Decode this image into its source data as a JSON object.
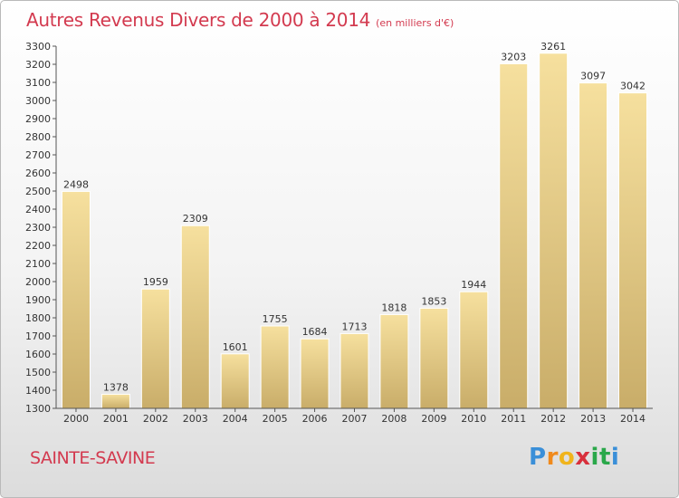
{
  "header": {
    "title": "Autres Revenus Divers de 2000 à 2014",
    "subtitle": "(en milliers d'€)"
  },
  "footer": {
    "place": "SAINTE-SAVINE",
    "logo": "Proxiti",
    "logo_letters": [
      "P",
      "r",
      "o",
      "x",
      "i",
      "t",
      "i"
    ]
  },
  "colors": {
    "accent": "#d33a4f",
    "bar_light": "#f6e09e",
    "bar_dark": "#c9ad69"
  },
  "chart_data": {
    "type": "bar",
    "title": "Autres Revenus Divers de 2000 à 2014",
    "subtitle": "(en milliers d'€)",
    "xlabel": "",
    "ylabel": "",
    "categories": [
      "2000",
      "2001",
      "2002",
      "2003",
      "2004",
      "2005",
      "2006",
      "2007",
      "2008",
      "2009",
      "2010",
      "2011",
      "2012",
      "2013",
      "2014"
    ],
    "values": [
      2498,
      1378,
      1959,
      2309,
      1601,
      1755,
      1684,
      1713,
      1818,
      1853,
      1944,
      3203,
      3261,
      3097,
      3042
    ],
    "ylim": [
      1300,
      3300
    ],
    "yticks": [
      1300,
      1400,
      1500,
      1600,
      1700,
      1800,
      1900,
      2000,
      2100,
      2200,
      2300,
      2400,
      2500,
      2600,
      2700,
      2800,
      2900,
      3000,
      3100,
      3200,
      3300
    ],
    "grid": false,
    "legend": "none"
  }
}
